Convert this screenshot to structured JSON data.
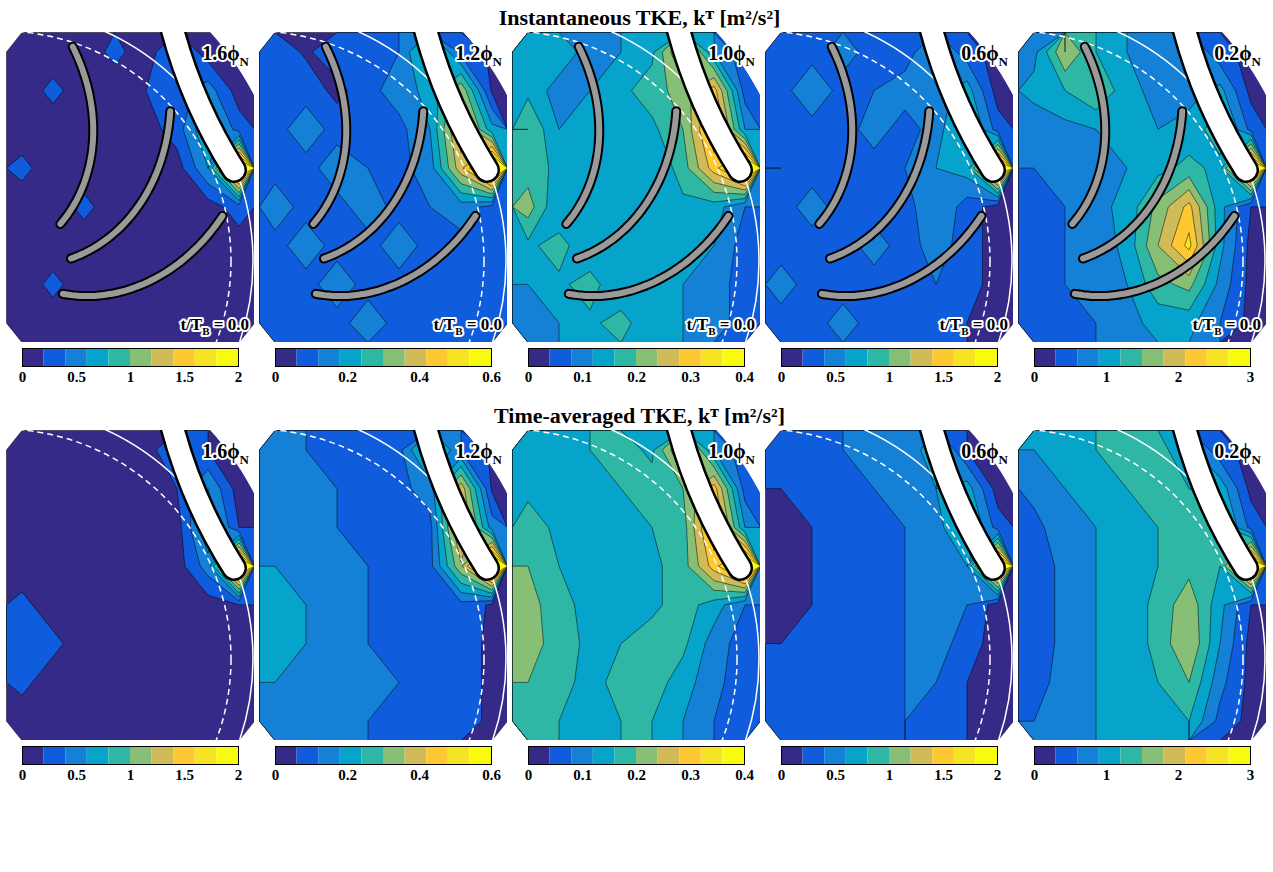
{
  "chart_data": [
    {
      "type": "contour",
      "title": "Instantaneous TKE, kᵀ [m²/s²]",
      "tick_labels": false,
      "colors": [
        "#352a87",
        "#0f5cdd",
        "#1481d6",
        "#06a4ca",
        "#2eb7a4",
        "#87bf77",
        "#d1bb59",
        "#fec832",
        "#f5e324",
        "#f9fb0e"
      ],
      "panels": [
        {
          "label": "1.6ϕ",
          "label_sub": "N",
          "time": {
            "main": "t/T",
            "sub": "B",
            "rest": "= 0.0"
          },
          "colorbar": {
            "range": [
              0,
              2
            ],
            "ticks": [
              0,
              0.5,
              1,
              1.5,
              2
            ]
          },
          "cells": [
            [
              0.1,
              0.1,
              0.1,
              0.25,
              0.1,
              0.4,
              0.1,
              0.1
            ],
            [
              0.1,
              0.25,
              0.1,
              0.1,
              0.2,
              0.3,
              0.5,
              0.1
            ],
            [
              0.1,
              0.1,
              0.1,
              0.1,
              0.1,
              0.3,
              0.8,
              0.3
            ],
            [
              0.25,
              0.1,
              0.1,
              0.1,
              0.1,
              0.1,
              0.6,
              2.2
            ],
            [
              0.1,
              0.1,
              0.25,
              0.1,
              0.1,
              0.1,
              0.1,
              0.3
            ],
            [
              0.1,
              0.1,
              0.1,
              0.1,
              0.1,
              0.1,
              0.1,
              0.1
            ],
            [
              0.1,
              0.25,
              0.1,
              0.1,
              0.1,
              0.1,
              0.1,
              0.1
            ],
            [
              0.1,
              0.1,
              0.1,
              0.1,
              0.1,
              0.1,
              0.1,
              0.1
            ]
          ]
        },
        {
          "label": "1.2ϕ",
          "label_sub": "N",
          "time": {
            "main": "t/T",
            "sub": "B",
            "rest": "= 0.0"
          },
          "colorbar": {
            "range": [
              0,
              0.6
            ],
            "ticks": [
              0,
              0.2,
              0.4,
              0.6
            ]
          },
          "cells": [
            [
              0.1,
              0.05,
              0.1,
              0.1,
              0.12,
              0.3,
              0.1,
              0.05
            ],
            [
              0.12,
              0.1,
              0.04,
              0.1,
              0.15,
              0.2,
              0.35,
              0.05
            ],
            [
              0.1,
              0.15,
              0.1,
              0.1,
              0.1,
              0.18,
              0.45,
              0.2
            ],
            [
              0.1,
              0.1,
              0.15,
              0.12,
              0.1,
              0.15,
              0.4,
              0.7
            ],
            [
              0.15,
              0.1,
              0.1,
              0.15,
              0.1,
              0.12,
              0.15,
              0.1
            ],
            [
              0.1,
              0.15,
              0.1,
              0.1,
              0.15,
              0.1,
              0.1,
              0.08
            ],
            [
              0.1,
              0.1,
              0.15,
              0.1,
              0.1,
              0.12,
              0.1,
              0.08
            ],
            [
              0.1,
              0.1,
              0.1,
              0.15,
              0.1,
              0.1,
              0.1,
              0.08
            ]
          ]
        },
        {
          "label": "1.0ϕ",
          "label_sub": "N",
          "time": {
            "main": "t/T",
            "sub": "B",
            "rest": "= 0.0"
          },
          "colorbar": {
            "range": [
              0,
              0.4
            ],
            "ticks": [
              0,
              0.1,
              0.2,
              0.3,
              0.4
            ]
          },
          "cells": [
            [
              0.12,
              0.15,
              0.1,
              0.12,
              0.15,
              0.3,
              0.12,
              0.05
            ],
            [
              0.15,
              0.1,
              0.12,
              0.15,
              0.18,
              0.22,
              0.3,
              0.06
            ],
            [
              0.2,
              0.12,
              0.15,
              0.12,
              0.15,
              0.2,
              0.35,
              0.12
            ],
            [
              0.18,
              0.15,
              0.12,
              0.15,
              0.12,
              0.18,
              0.3,
              0.45
            ],
            [
              0.22,
              0.12,
              0.15,
              0.12,
              0.15,
              0.15,
              0.14,
              0.08
            ],
            [
              0.15,
              0.18,
              0.12,
              0.15,
              0.12,
              0.16,
              0.12,
              0.06
            ],
            [
              0.12,
              0.15,
              0.18,
              0.12,
              0.15,
              0.12,
              0.1,
              0.06
            ],
            [
              0.1,
              0.12,
              0.15,
              0.18,
              0.12,
              0.12,
              0.1,
              0.06
            ]
          ]
        },
        {
          "label": "0.6ϕ",
          "label_sub": "N",
          "time": {
            "main": "t/T",
            "sub": "B",
            "rest": "= 0.0"
          },
          "colorbar": {
            "range": [
              0,
              2
            ],
            "ticks": [
              0,
              0.5,
              1,
              1.5,
              2
            ]
          },
          "cells": [
            [
              0.3,
              0.3,
              0.5,
              0.3,
              0.3,
              0.6,
              0.3,
              0.1
            ],
            [
              0.3,
              0.6,
              0.3,
              0.4,
              0.5,
              0.5,
              0.7,
              0.1
            ],
            [
              0.3,
              0.3,
              0.3,
              0.5,
              0.3,
              0.5,
              0.9,
              0.3
            ],
            [
              0.4,
              0.3,
              0.3,
              0.3,
              0.4,
              0.6,
              0.7,
              2.1
            ],
            [
              0.3,
              0.5,
              0.3,
              0.3,
              0.3,
              0.6,
              0.3,
              0.1
            ],
            [
              0.3,
              0.3,
              0.3,
              0.5,
              0.3,
              0.5,
              0.3,
              0.1
            ],
            [
              0.5,
              0.3,
              0.3,
              0.3,
              0.3,
              0.4,
              0.3,
              0.1
            ],
            [
              0.3,
              0.3,
              0.5,
              0.3,
              0.3,
              0.3,
              0.2,
              0.1
            ]
          ]
        },
        {
          "label": "0.2ϕ",
          "label_sub": "N",
          "time": {
            "main": "t/T",
            "sub": "B",
            "rest": "= 0.0"
          },
          "colorbar": {
            "range": [
              0,
              3
            ],
            "ticks": [
              0,
              1,
              2,
              3
            ]
          },
          "cells": [
            [
              0.8,
              1.8,
              1.2,
              0.9,
              0.7,
              0.9,
              0.4,
              0.2
            ],
            [
              1.0,
              1.2,
              1.5,
              1.0,
              0.8,
              0.8,
              1.0,
              0.2
            ],
            [
              0.7,
              0.8,
              0.9,
              1.0,
              0.9,
              1.0,
              1.4,
              0.5
            ],
            [
              0.6,
              0.7,
              0.8,
              0.9,
              1.1,
              1.3,
              1.1,
              3.2
            ],
            [
              0.5,
              0.6,
              0.8,
              1.0,
              1.6,
              2.2,
              1.0,
              0.3
            ],
            [
              0.5,
              0.6,
              0.7,
              1.0,
              1.8,
              2.5,
              1.0,
              0.2
            ],
            [
              0.5,
              0.6,
              0.7,
              0.9,
              1.4,
              1.6,
              0.8,
              0.2
            ],
            [
              0.4,
              0.5,
              0.6,
              0.8,
              1.0,
              1.0,
              0.6,
              0.2
            ]
          ]
        }
      ]
    },
    {
      "type": "contour",
      "title": "Time-averaged TKE, kᵀ [m²/s²]",
      "tick_labels": false,
      "colors": [
        "#352a87",
        "#0f5cdd",
        "#1481d6",
        "#06a4ca",
        "#2eb7a4",
        "#87bf77",
        "#d1bb59",
        "#fec832",
        "#f5e324",
        "#f9fb0e"
      ],
      "panels": [
        {
          "label": "1.6ϕ",
          "label_sub": "N",
          "colorbar": {
            "range": [
              0,
              2
            ],
            "ticks": [
              0,
              0.5,
              1,
              1.5,
              2
            ]
          },
          "cells": [
            [
              0.1,
              0.1,
              0.1,
              0.1,
              0.1,
              0.4,
              0.2,
              0.1
            ],
            [
              0.1,
              0.1,
              0.1,
              0.1,
              0.1,
              0.2,
              0.6,
              0.1
            ],
            [
              0.1,
              0.1,
              0.1,
              0.1,
              0.1,
              0.1,
              0.8,
              0.2
            ],
            [
              0.1,
              0.1,
              0.1,
              0.1,
              0.1,
              0.1,
              0.5,
              2.2
            ],
            [
              0.25,
              0.1,
              0.1,
              0.1,
              0.1,
              0.1,
              0.1,
              0.2
            ],
            [
              0.25,
              0.25,
              0.1,
              0.1,
              0.1,
              0.1,
              0.1,
              0.1
            ],
            [
              0.25,
              0.1,
              0.1,
              0.1,
              0.1,
              0.1,
              0.1,
              0.1
            ],
            [
              0.1,
              0.1,
              0.1,
              0.1,
              0.1,
              0.1,
              0.1,
              0.1
            ]
          ]
        },
        {
          "label": "1.2ϕ",
          "label_sub": "N",
          "colorbar": {
            "range": [
              0,
              0.6
            ],
            "ticks": [
              0,
              0.2,
              0.4,
              0.6
            ]
          },
          "cells": [
            [
              0.12,
              0.12,
              0.1,
              0.1,
              0.1,
              0.3,
              0.12,
              0.05
            ],
            [
              0.15,
              0.12,
              0.12,
              0.1,
              0.1,
              0.15,
              0.4,
              0.05
            ],
            [
              0.15,
              0.15,
              0.12,
              0.1,
              0.1,
              0.1,
              0.45,
              0.15
            ],
            [
              0.18,
              0.15,
              0.12,
              0.12,
              0.1,
              0.1,
              0.35,
              0.7
            ],
            [
              0.2,
              0.18,
              0.15,
              0.12,
              0.1,
              0.1,
              0.1,
              0.05
            ],
            [
              0.2,
              0.18,
              0.15,
              0.12,
              0.1,
              0.1,
              0.08,
              0.05
            ],
            [
              0.18,
              0.15,
              0.15,
              0.12,
              0.12,
              0.1,
              0.08,
              0.05
            ],
            [
              0.15,
              0.15,
              0.12,
              0.12,
              0.1,
              0.1,
              0.08,
              0.05
            ]
          ]
        },
        {
          "label": "1.0ϕ",
          "label_sub": "N",
          "colorbar": {
            "range": [
              0,
              0.4
            ],
            "ticks": [
              0,
              0.1,
              0.2,
              0.3,
              0.4
            ]
          },
          "cells": [
            [
              0.14,
              0.13,
              0.16,
              0.18,
              0.15,
              0.3,
              0.12,
              0.05
            ],
            [
              0.15,
              0.14,
              0.13,
              0.16,
              0.18,
              0.2,
              0.3,
              0.06
            ],
            [
              0.18,
              0.15,
              0.14,
              0.13,
              0.16,
              0.18,
              0.35,
              0.12
            ],
            [
              0.2,
              0.16,
              0.14,
              0.13,
              0.15,
              0.18,
              0.3,
              0.45
            ],
            [
              0.22,
              0.17,
              0.15,
              0.14,
              0.15,
              0.18,
              0.14,
              0.08
            ],
            [
              0.22,
              0.18,
              0.15,
              0.16,
              0.18,
              0.17,
              0.1,
              0.06
            ],
            [
              0.2,
              0.17,
              0.15,
              0.17,
              0.18,
              0.14,
              0.09,
              0.06
            ],
            [
              0.18,
              0.16,
              0.15,
              0.16,
              0.16,
              0.12,
              0.08,
              0.06
            ]
          ]
        },
        {
          "label": "0.6ϕ",
          "label_sub": "N",
          "colorbar": {
            "range": [
              0,
              2
            ],
            "ticks": [
              0,
              0.5,
              1,
              1.5,
              2
            ]
          },
          "cells": [
            [
              0.2,
              0.3,
              0.4,
              0.5,
              0.5,
              0.7,
              0.2,
              0.1
            ],
            [
              0.2,
              0.3,
              0.3,
              0.4,
              0.5,
              0.6,
              0.7,
              0.1
            ],
            [
              0.15,
              0.2,
              0.3,
              0.3,
              0.4,
              0.5,
              0.9,
              0.3
            ],
            [
              0.15,
              0.2,
              0.3,
              0.3,
              0.4,
              0.5,
              0.6,
              2.1
            ],
            [
              0.15,
              0.2,
              0.3,
              0.3,
              0.4,
              0.5,
              0.4,
              0.1
            ],
            [
              0.2,
              0.2,
              0.3,
              0.3,
              0.4,
              0.5,
              0.3,
              0.1
            ],
            [
              0.2,
              0.3,
              0.3,
              0.3,
              0.4,
              0.4,
              0.2,
              0.1
            ],
            [
              0.3,
              0.3,
              0.3,
              0.3,
              0.4,
              0.3,
              0.2,
              0.1
            ]
          ]
        },
        {
          "label": "0.2ϕ",
          "label_sub": "N",
          "colorbar": {
            "range": [
              0,
              3
            ],
            "ticks": [
              0,
              1,
              2,
              3
            ]
          },
          "cells": [
            [
              0.9,
              1.0,
              1.2,
              1.5,
              1.3,
              1.0,
              0.4,
              0.2
            ],
            [
              0.7,
              0.9,
              1.0,
              1.2,
              1.3,
              1.2,
              1.1,
              0.2
            ],
            [
              0.5,
              0.8,
              0.9,
              1.0,
              1.2,
              1.3,
              1.4,
              0.5
            ],
            [
              0.4,
              0.7,
              0.9,
              1.0,
              1.2,
              1.4,
              1.2,
              3.2
            ],
            [
              0.4,
              0.7,
              0.9,
              1.0,
              1.3,
              1.7,
              1.0,
              0.3
            ],
            [
              0.4,
              0.7,
              0.9,
              1.0,
              1.3,
              1.8,
              0.9,
              0.2
            ],
            [
              0.5,
              0.7,
              0.9,
              1.0,
              1.2,
              1.5,
              0.7,
              0.2
            ],
            [
              0.6,
              0.7,
              0.9,
              1.0,
              1.1,
              1.2,
              0.5,
              0.2
            ]
          ]
        }
      ]
    }
  ]
}
